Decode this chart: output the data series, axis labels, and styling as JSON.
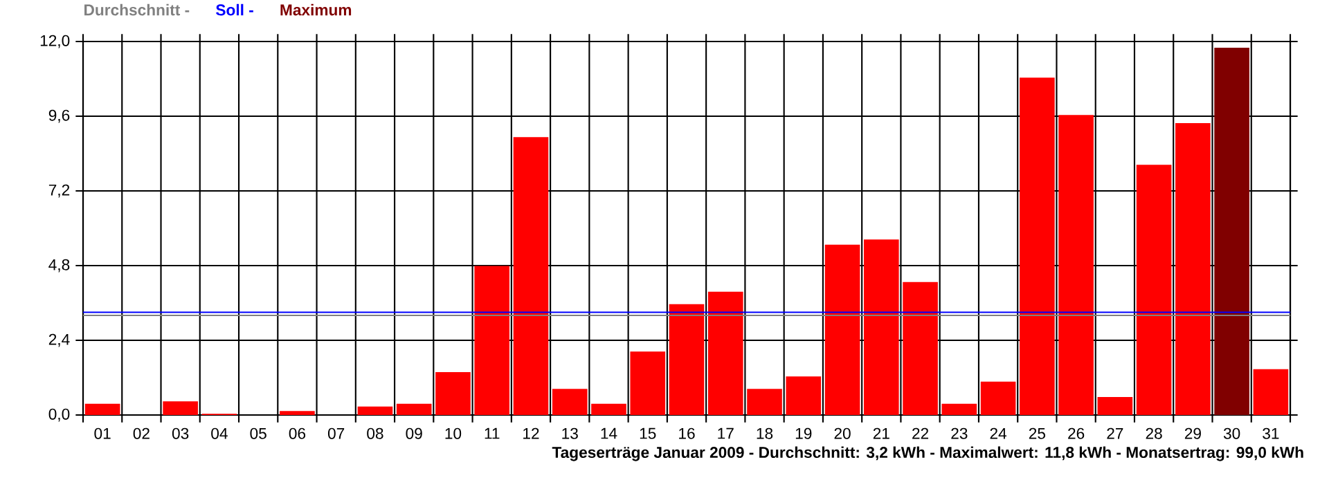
{
  "chart_data": {
    "type": "bar",
    "xlabel": "Tageserträge Januar 2009 - Durchschnitt: 3,2 kWh - Maximalwert: 11,8 kWh - Monatsertrag: 99,0 kWh",
    "categories": [
      "01",
      "02",
      "03",
      "04",
      "05",
      "06",
      "07",
      "08",
      "09",
      "10",
      "11",
      "12",
      "13",
      "14",
      "15",
      "16",
      "17",
      "18",
      "19",
      "20",
      "21",
      "22",
      "23",
      "24",
      "25",
      "26",
      "27",
      "28",
      "29",
      "30",
      "31"
    ],
    "values": [
      0.36,
      0,
      0.44,
      0.04,
      0,
      0.13,
      0,
      0.27,
      0.36,
      1.38,
      4.79,
      8.93,
      0.84,
      0.36,
      2.04,
      3.56,
      3.96,
      0.84,
      1.24,
      5.47,
      5.64,
      4.27,
      0.36,
      1.07,
      10.84,
      9.64,
      0.58,
      8.04,
      9.38,
      11.8,
      1.47
    ],
    "colors": [
      "#ff0000",
      "#ff0000",
      "#ff0000",
      "#ff0000",
      "#ff0000",
      "#ff0000",
      "#ff0000",
      "#ff0000",
      "#ff0000",
      "#ff0000",
      "#ff0000",
      "#ff0000",
      "#ff0000",
      "#ff0000",
      "#ff0000",
      "#ff0000",
      "#ff0000",
      "#ff0000",
      "#ff0000",
      "#ff0000",
      "#ff0000",
      "#ff0000",
      "#ff0000",
      "#ff0000",
      "#ff0000",
      "#ff0000",
      "#ff0000",
      "#ff0000",
      "#ff0000",
      "#800000",
      "#ff0000"
    ],
    "ylim": [
      0,
      12
    ],
    "yticks": [
      {
        "value": 0,
        "label": "0,0"
      },
      {
        "value": 2.4,
        "label": "2,4"
      },
      {
        "value": 4.8,
        "label": "4,8"
      },
      {
        "value": 7.2,
        "label": "7,2"
      },
      {
        "value": 9.6,
        "label": "9,6"
      },
      {
        "value": 12,
        "label": "12,0"
      }
    ],
    "grid": true,
    "ref_lines": [
      {
        "axis": "y",
        "value": 3.2,
        "label": "Durchschnitt -",
        "color": "#808080"
      },
      {
        "axis": "y",
        "value": 3.3,
        "label": "Soll -",
        "color": "#0000ff"
      }
    ],
    "annotations": [
      "Maximum"
    ]
  }
}
